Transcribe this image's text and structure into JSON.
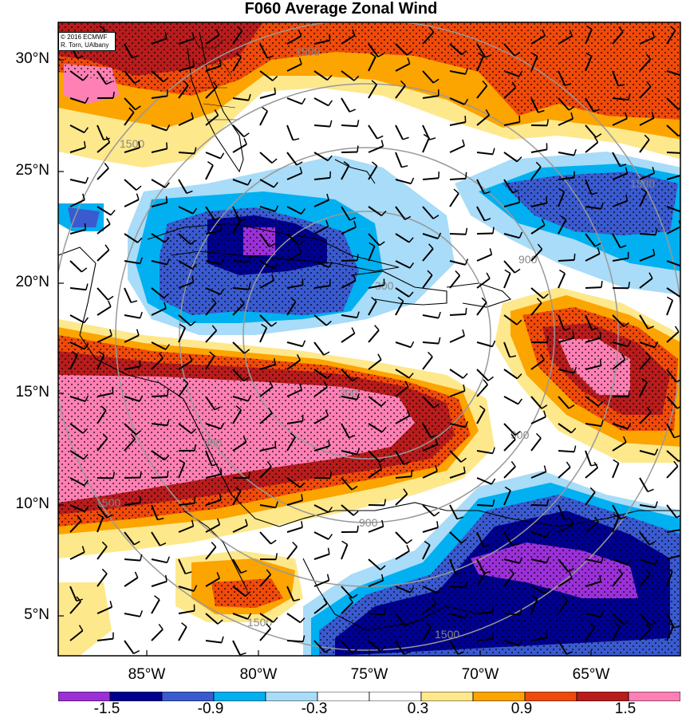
{
  "title": "F060 Average Zonal Wind",
  "copyright": [
    "© 2016 ECMWF",
    "R. Torn, UAlbany"
  ],
  "lat_labels": [
    "30°N",
    "25°N",
    "20°N",
    "15°N",
    "10°N",
    "5°N"
  ],
  "lon_labels": [
    "85°W",
    "80°W",
    "75°W",
    "70°W",
    "65°W"
  ],
  "contour_labels": [
    "1500",
    "900",
    "300"
  ],
  "colorbar": {
    "colors": [
      "#9b30d8",
      "#000090",
      "#3a5ad0",
      "#00b0f0",
      "#a8dcf8",
      "#ffffff",
      "#ffffff",
      "#fee88c",
      "#fca400",
      "#f04a0a",
      "#b81c1c",
      "#ff80b4"
    ],
    "labels": [
      "-1.5",
      "-0.9",
      "-0.3",
      "0.3",
      "0.9",
      "1.5"
    ]
  },
  "chart_data": {
    "type": "heatmap",
    "variable": "Average Zonal Wind",
    "forecast_hour": "F060",
    "lon_range": [
      -88,
      -60
    ],
    "lat_range": [
      3.5,
      31.5
    ],
    "levels": [
      -1.5,
      -1.2,
      -0.9,
      -0.6,
      -0.3,
      0,
      0.3,
      0.6,
      0.9,
      1.2,
      1.5
    ],
    "distance_rings": [
      300,
      900,
      1500
    ]
  }
}
